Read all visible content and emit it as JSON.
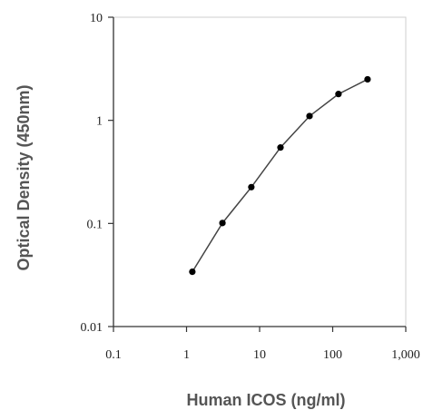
{
  "chart_data": {
    "type": "scatter",
    "title": "",
    "xlabel": "Human ICOS (ng/ml)",
    "ylabel": "Optical Density (450nm)",
    "x_scale": "log",
    "y_scale": "log",
    "xlim": [
      0.1,
      1000
    ],
    "ylim": [
      0.01,
      10
    ],
    "x_ticks": [
      {
        "value": 0.1,
        "label": "0.1"
      },
      {
        "value": 1,
        "label": "1"
      },
      {
        "value": 10,
        "label": "10"
      },
      {
        "value": 100,
        "label": "100"
      },
      {
        "value": 1000,
        "label": "1,000"
      }
    ],
    "y_ticks": [
      {
        "value": 10,
        "label": "10"
      },
      {
        "value": 1,
        "label": "1"
      },
      {
        "value": 0.1,
        "label": "0.1"
      },
      {
        "value": 0.01,
        "label": "0.01"
      }
    ],
    "grid": false,
    "legend": "none",
    "series": [
      {
        "connected": true,
        "points": [
          {
            "x": 1.2,
            "y": 0.034
          },
          {
            "x": 3.1,
            "y": 0.101
          },
          {
            "x": 7.7,
            "y": 0.225
          },
          {
            "x": 19.3,
            "y": 0.545
          },
          {
            "x": 48.2,
            "y": 1.1
          },
          {
            "x": 120,
            "y": 1.8
          },
          {
            "x": 300,
            "y": 2.5
          }
        ]
      }
    ],
    "colors": {
      "axis": "#333333",
      "line": "#444444",
      "marker": "#000000",
      "title_text": "#555555"
    }
  }
}
